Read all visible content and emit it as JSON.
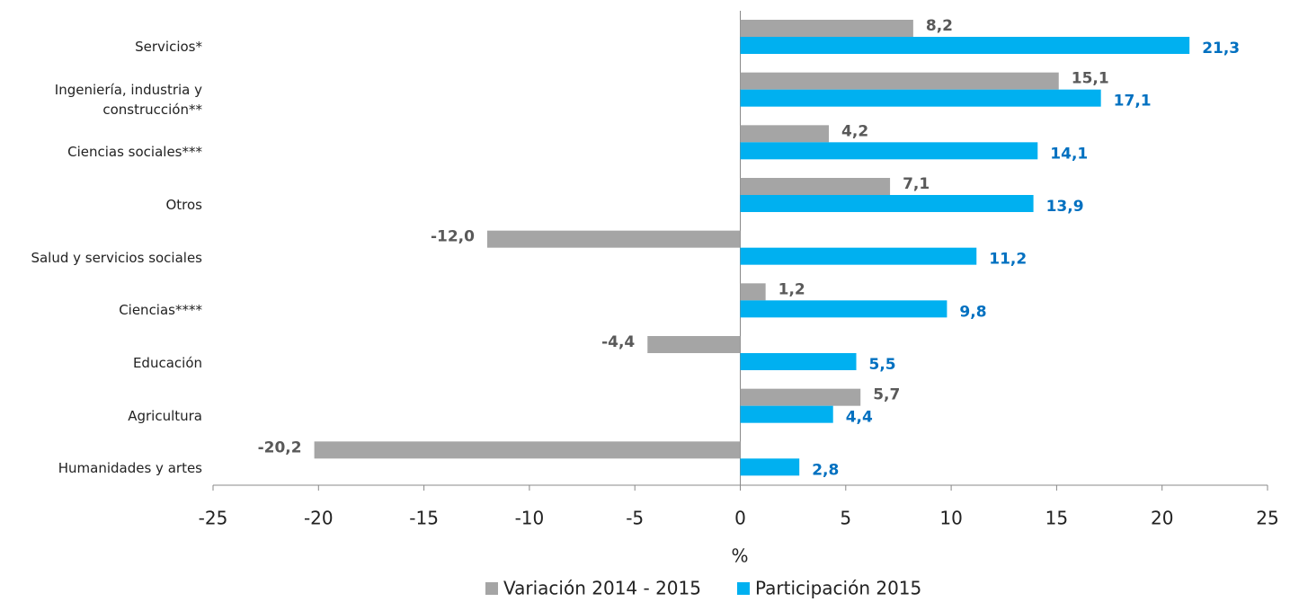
{
  "chart_data": {
    "type": "bar",
    "orientation": "horizontal",
    "categories": [
      "Servicios*",
      "Ingeniería, industria y construcción**",
      "Ciencias sociales***",
      "Otros",
      "Salud y servicios sociales",
      "Ciencias****",
      "Educación",
      "Agricultura",
      "Humanidades y artes"
    ],
    "series": [
      {
        "name": "Variación 2014 - 2015",
        "color": "#a5a5a5",
        "label_color": "#595959",
        "values": [
          8.2,
          15.1,
          4.2,
          7.1,
          -12.0,
          1.2,
          -4.4,
          5.7,
          -20.2
        ],
        "value_labels": [
          "8,2",
          "15,1",
          "4,2",
          "7,1",
          "-12,0",
          "1,2",
          "-4,4",
          "5,7",
          "-20,2"
        ]
      },
      {
        "name": "Participación 2015",
        "color": "#00b0f0",
        "label_color": "#0070c0",
        "values": [
          21.3,
          17.1,
          14.1,
          13.9,
          11.2,
          9.8,
          5.5,
          4.4,
          2.8
        ],
        "value_labels": [
          "21,3",
          "17,1",
          "14,1",
          "13,9",
          "11,2",
          "9,8",
          "5,5",
          "4,4",
          "2,8"
        ]
      }
    ],
    "xlabel": "%",
    "xlim": [
      -25,
      25
    ],
    "xticks": [
      -25,
      -20,
      -15,
      -10,
      -5,
      0,
      5,
      10,
      15,
      20,
      25
    ],
    "legend": "bottom"
  }
}
